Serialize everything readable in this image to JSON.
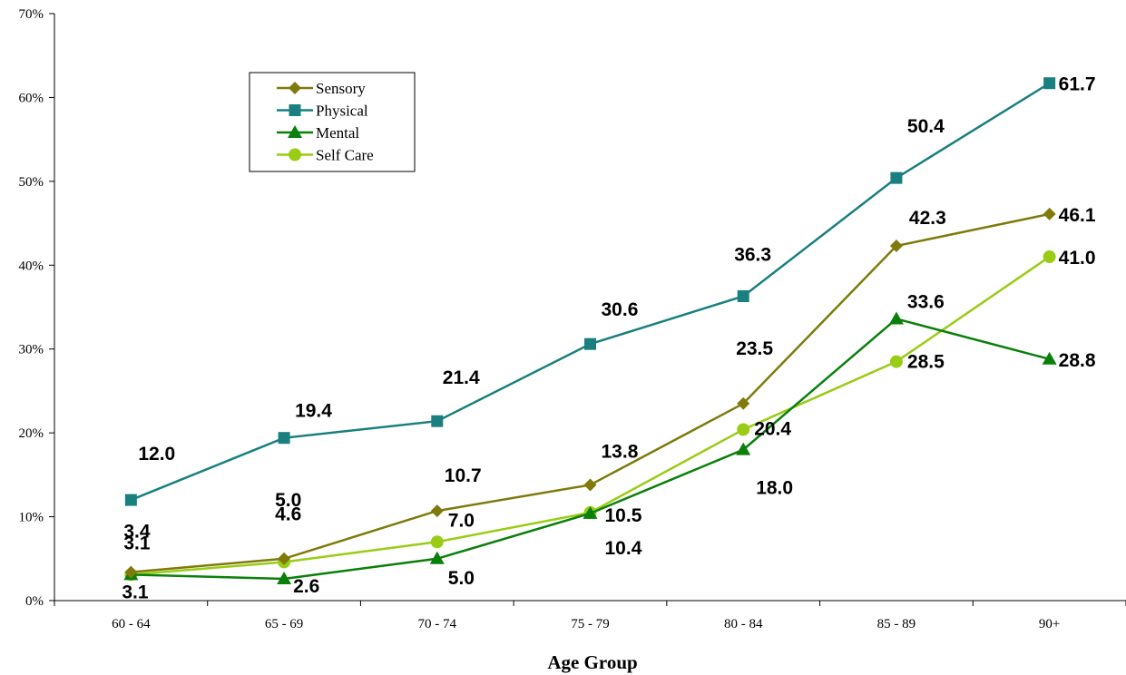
{
  "chart_data": {
    "type": "line",
    "title": "",
    "xlabel": "Age Group",
    "ylabel": "",
    "ylim": [
      0,
      70
    ],
    "yticks": [
      "0%",
      "10%",
      "20%",
      "30%",
      "40%",
      "50%",
      "60%",
      "70%"
    ],
    "categories": [
      "60 - 64",
      "65 - 69",
      "70 - 74",
      "75 - 79",
      "80 - 84",
      "85 - 89",
      "90+"
    ],
    "grid": false,
    "legend_position": "top-left",
    "series": [
      {
        "name": "Sensory",
        "color": "#7f7a0b",
        "marker": "diamond",
        "values": [
          3.4,
          5.0,
          10.7,
          13.8,
          23.5,
          42.3,
          46.1
        ],
        "labels": [
          "3.4",
          "5.0",
          "10.7",
          "13.8",
          "23.5",
          "42.3",
          "46.1"
        ]
      },
      {
        "name": "Physical",
        "color": "#1a7f7f",
        "marker": "square",
        "values": [
          12.0,
          19.4,
          21.4,
          30.6,
          36.3,
          50.4,
          61.7
        ],
        "labels": [
          "12.0",
          "19.4",
          "21.4",
          "30.6",
          "36.3",
          "50.4",
          "61.7"
        ]
      },
      {
        "name": "Mental",
        "color": "#0a7f0a",
        "marker": "triangle",
        "values": [
          3.1,
          2.6,
          5.0,
          10.4,
          18.0,
          33.6,
          28.8
        ],
        "labels": [
          "3.1",
          "2.6",
          "5.0",
          "10.4",
          "18.0",
          "33.6",
          "28.8"
        ]
      },
      {
        "name": "Self Care",
        "color": "#99cc14",
        "marker": "circle",
        "values": [
          3.1,
          4.6,
          7.0,
          10.5,
          20.4,
          28.5,
          41.0
        ],
        "labels": [
          "3.1",
          "4.6",
          "7.0",
          "10.5",
          "20.4",
          "28.5",
          "41.0"
        ]
      }
    ]
  }
}
